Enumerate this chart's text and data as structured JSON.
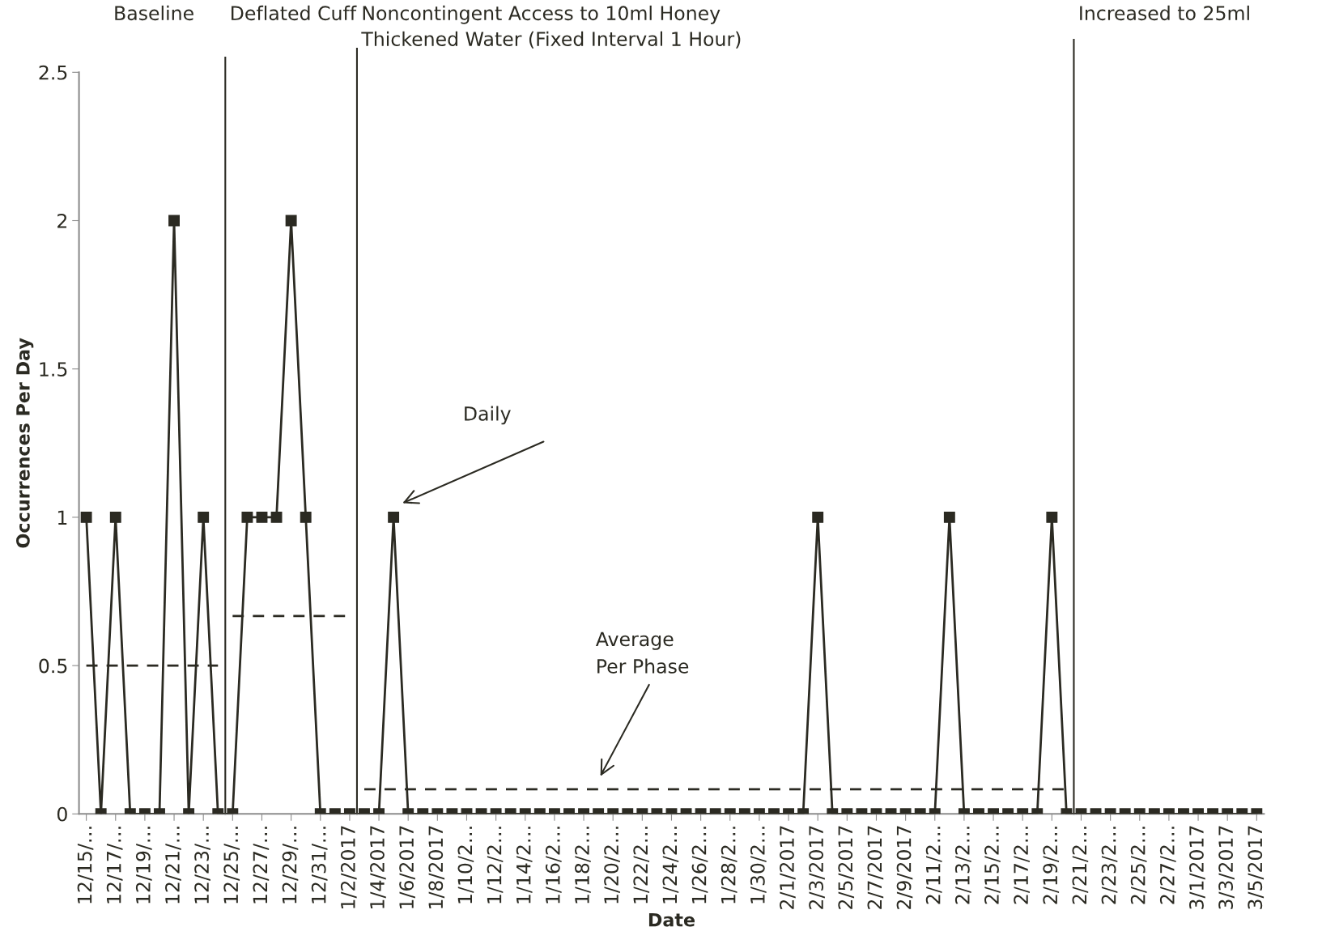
{
  "chart_data": {
    "type": "line",
    "xlabel": "Date",
    "ylabel": "Occurrences Per Day",
    "x": [
      "2016-12-15",
      "2016-12-16",
      "2016-12-17",
      "2016-12-18",
      "2016-12-19",
      "2016-12-20",
      "2016-12-21",
      "2016-12-22",
      "2016-12-23",
      "2016-12-24",
      "2016-12-25",
      "2016-12-26",
      "2016-12-27",
      "2016-12-28",
      "2016-12-29",
      "2016-12-30",
      "2016-12-31",
      "2017-01-01",
      "2017-01-02",
      "2017-01-03",
      "2017-01-04",
      "2017-01-05",
      "2017-01-06",
      "2017-01-07",
      "2017-01-08",
      "2017-01-09",
      "2017-01-10",
      "2017-01-11",
      "2017-01-12",
      "2017-01-13",
      "2017-01-14",
      "2017-01-15",
      "2017-01-16",
      "2017-01-17",
      "2017-01-18",
      "2017-01-19",
      "2017-01-20",
      "2017-01-21",
      "2017-01-22",
      "2017-01-23",
      "2017-01-24",
      "2017-01-25",
      "2017-01-26",
      "2017-01-27",
      "2017-01-28",
      "2017-01-29",
      "2017-01-30",
      "2017-01-31",
      "2017-02-01",
      "2017-02-02",
      "2017-02-03",
      "2017-02-04",
      "2017-02-05",
      "2017-02-06",
      "2017-02-07",
      "2017-02-08",
      "2017-02-09",
      "2017-02-10",
      "2017-02-11",
      "2017-02-12",
      "2017-02-13",
      "2017-02-14",
      "2017-02-15",
      "2017-02-16",
      "2017-02-17",
      "2017-02-18",
      "2017-02-19",
      "2017-02-20",
      "2017-02-21",
      "2017-02-22",
      "2017-02-23",
      "2017-02-24",
      "2017-02-25",
      "2017-02-26",
      "2017-02-27",
      "2017-02-28",
      "2017-03-01",
      "2017-03-02",
      "2017-03-03",
      "2017-03-04",
      "2017-03-05"
    ],
    "series": [
      {
        "color": "#2b2a22",
        "marker": "square",
        "line_style": "solid",
        "values": [
          1,
          0,
          1,
          0,
          0,
          0,
          2,
          0,
          1,
          0,
          0,
          1,
          1,
          1,
          2,
          1,
          0,
          0,
          0,
          0,
          0,
          1,
          0,
          0,
          0,
          0,
          0,
          0,
          0,
          0,
          0,
          0,
          0,
          0,
          0,
          0,
          0,
          0,
          0,
          0,
          0,
          0,
          0,
          0,
          0,
          0,
          0,
          0,
          0,
          0,
          1,
          0,
          0,
          0,
          0,
          0,
          0,
          0,
          0,
          1,
          0,
          0,
          0,
          0,
          0,
          0,
          1,
          0,
          0,
          0,
          0,
          0,
          0,
          0,
          0,
          0,
          0,
          0,
          0,
          0,
          0
        ]
      },
      {
        "color": "#2b2a22",
        "marker": "none",
        "line_style": "dashed",
        "x": [
          "2016-12-15",
          "2016-12-24"
        ],
        "values": [
          0.5,
          0.5
        ]
      },
      {
        "color": "#2b2a22",
        "marker": "none",
        "line_style": "dashed",
        "x": [
          "2016-12-25",
          "2017-01-02"
        ],
        "values": [
          0.667,
          0.667
        ]
      },
      {
        "color": "#2b2a22",
        "marker": "none",
        "line_style": "dashed",
        "x": [
          "2017-01-03",
          "2017-02-20"
        ],
        "values": [
          0.083,
          0.083
        ]
      }
    ],
    "xlim": [
      "2016-12-14T12:00",
      "2017-03-05T12:00"
    ],
    "xticks": [
      {
        "value": "2016-12-15",
        "label": "12/15/…"
      },
      {
        "value": "2016-12-17",
        "label": "12/17/…"
      },
      {
        "value": "2016-12-19",
        "label": "12/19/…"
      },
      {
        "value": "2016-12-21",
        "label": "12/21/…"
      },
      {
        "value": "2016-12-23",
        "label": "12/23/…"
      },
      {
        "value": "2016-12-25",
        "label": "12/25/…"
      },
      {
        "value": "2016-12-27",
        "label": "12/27/…"
      },
      {
        "value": "2016-12-29",
        "label": "12/29/…"
      },
      {
        "value": "2016-12-31",
        "label": "12/31/…"
      },
      {
        "value": "2017-01-02",
        "label": "1/2/2017"
      },
      {
        "value": "2017-01-04",
        "label": "1/4/2017"
      },
      {
        "value": "2017-01-06",
        "label": "1/6/2017"
      },
      {
        "value": "2017-01-08",
        "label": "1/8/2017"
      },
      {
        "value": "2017-01-10",
        "label": "1/10/2…"
      },
      {
        "value": "2017-01-12",
        "label": "1/12/2…"
      },
      {
        "value": "2017-01-14",
        "label": "1/14/2…"
      },
      {
        "value": "2017-01-16",
        "label": "1/16/2…"
      },
      {
        "value": "2017-01-18",
        "label": "1/18/2…"
      },
      {
        "value": "2017-01-20",
        "label": "1/20/2…"
      },
      {
        "value": "2017-01-22",
        "label": "1/22/2…"
      },
      {
        "value": "2017-01-24",
        "label": "1/24/2…"
      },
      {
        "value": "2017-01-26",
        "label": "1/26/2…"
      },
      {
        "value": "2017-01-28",
        "label": "1/28/2…"
      },
      {
        "value": "2017-01-30",
        "label": "1/30/2…"
      },
      {
        "value": "2017-02-01",
        "label": "2/1/2017"
      },
      {
        "value": "2017-02-03",
        "label": "2/3/2017"
      },
      {
        "value": "2017-02-05",
        "label": "2/5/2017"
      },
      {
        "value": "2017-02-07",
        "label": "2/7/2017"
      },
      {
        "value": "2017-02-09",
        "label": "2/9/2017"
      },
      {
        "value": "2017-02-11",
        "label": "2/11/2…"
      },
      {
        "value": "2017-02-13",
        "label": "2/13/2…"
      },
      {
        "value": "2017-02-15",
        "label": "2/15/2…"
      },
      {
        "value": "2017-02-17",
        "label": "2/17/2…"
      },
      {
        "value": "2017-02-19",
        "label": "2/19/2…"
      },
      {
        "value": "2017-02-21",
        "label": "2/21/2…"
      },
      {
        "value": "2017-02-23",
        "label": "2/23/2…"
      },
      {
        "value": "2017-02-25",
        "label": "2/25/2…"
      },
      {
        "value": "2017-02-27",
        "label": "2/27/2…"
      },
      {
        "value": "2017-03-01",
        "label": "3/1/2017"
      },
      {
        "value": "2017-03-03",
        "label": "3/3/2017"
      },
      {
        "value": "2017-03-05",
        "label": "3/5/2017"
      }
    ],
    "ylim": [
      0,
      2.5
    ],
    "yticks": [
      0,
      0.5,
      1,
      1.5,
      2,
      2.5
    ],
    "grid": false,
    "ref_lines": [
      {
        "axis": "x",
        "value": "2016-12-24T12:00",
        "label": "Deflated Cuff",
        "color": "#2b2a22"
      },
      {
        "axis": "x",
        "value": "2017-01-02T12:00",
        "label": "Noncontingent Access to 10ml Honey\nThickened Water (Fixed Interval 1 Hour)",
        "color": "#2b2a22"
      },
      {
        "axis": "x",
        "value": "2017-02-20T12:00",
        "label": "Increased to 25ml",
        "color": "#2b2a22"
      }
    ],
    "annotations": [
      "Baseline",
      "Daily",
      "Average\nPer Phase"
    ]
  }
}
